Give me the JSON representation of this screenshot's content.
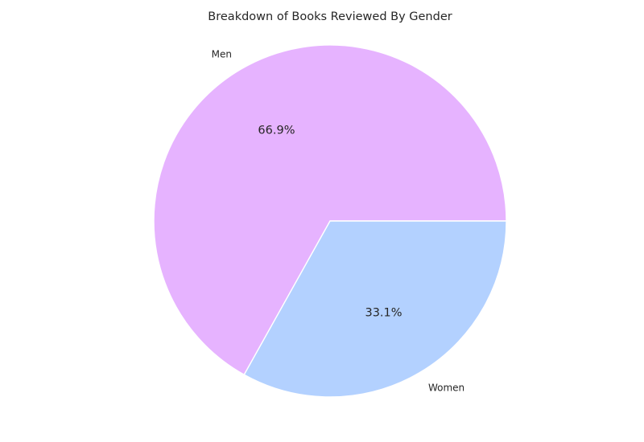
{
  "chart_data": {
    "type": "pie",
    "title": "Breakdown of Books Reviewed By Gender",
    "slices": [
      {
        "label": "Men",
        "value": 66.9,
        "pct_label": "66.9%",
        "color": "#e6b3ff"
      },
      {
        "label": "Women",
        "value": 33.1,
        "pct_label": "33.1%",
        "color": "#b3d1ff"
      }
    ],
    "start_angle_deg": 0,
    "direction": "counterclockwise",
    "legend": "none"
  }
}
